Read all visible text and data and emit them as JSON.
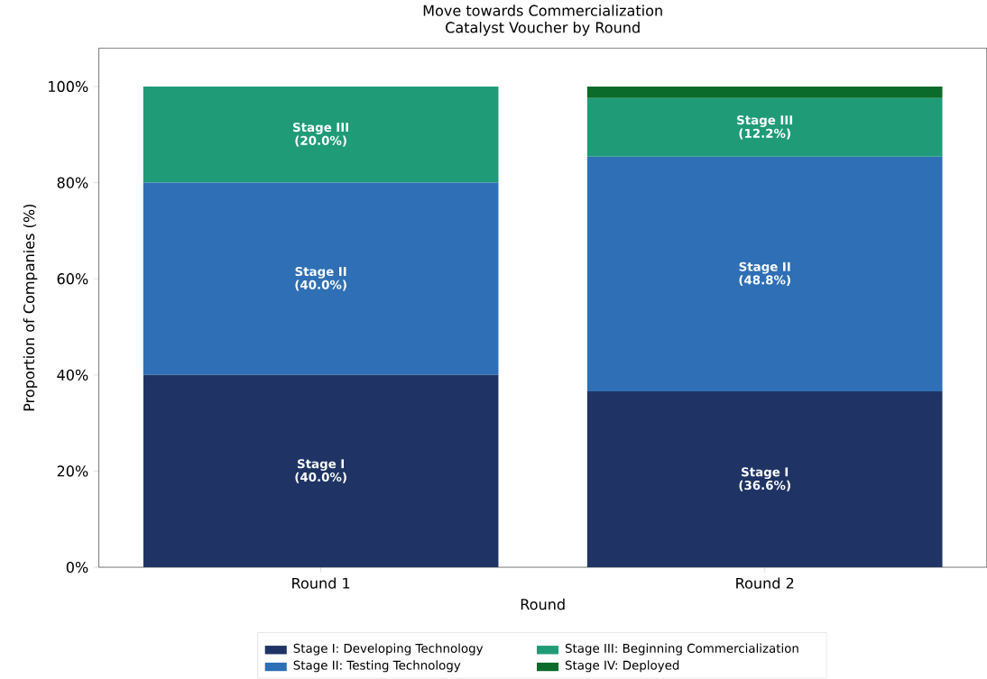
{
  "chart_data": {
    "type": "bar",
    "stacked": true,
    "title": "Move towards Commercialization",
    "subtitle": "Catalyst Voucher by Round",
    "xlabel": "Round",
    "ylabel": "Proportion of Companies (%)",
    "categories": [
      "Round 1",
      "Round 2"
    ],
    "series": [
      {
        "name": "Stage I: Developing Technology",
        "color": "#1f3464",
        "values": [
          40.0,
          36.6
        ],
        "value_labels": [
          "Stage I (40.0%)",
          "Stage I (36.6%)"
        ]
      },
      {
        "name": "Stage II: Testing Technology",
        "color": "#2e6fb5",
        "values": [
          40.0,
          48.8
        ],
        "value_labels": [
          "Stage II (40.0%)",
          "Stage II (48.8%)"
        ]
      },
      {
        "name": "Stage III: Beginning Commercialization",
        "color": "#1f9b78",
        "values": [
          20.0,
          12.2
        ],
        "value_labels": [
          "Stage III (20.0%)",
          "Stage III (12.2%)"
        ]
      },
      {
        "name": "Stage IV: Deployed",
        "color": "#0a6b2a",
        "values": [
          0,
          2.4
        ],
        "value_labels": [
          null,
          null
        ]
      }
    ],
    "ylim": [
      0,
      108
    ],
    "yticks": [
      {
        "value": 0,
        "label": "0%"
      },
      {
        "value": 20,
        "label": "20%"
      },
      {
        "value": 40,
        "label": "40%"
      },
      {
        "value": 60,
        "label": "60%"
      },
      {
        "value": 80,
        "label": "80%"
      },
      {
        "value": 100,
        "label": "100%"
      }
    ],
    "legend": "bottom",
    "grid": false
  }
}
